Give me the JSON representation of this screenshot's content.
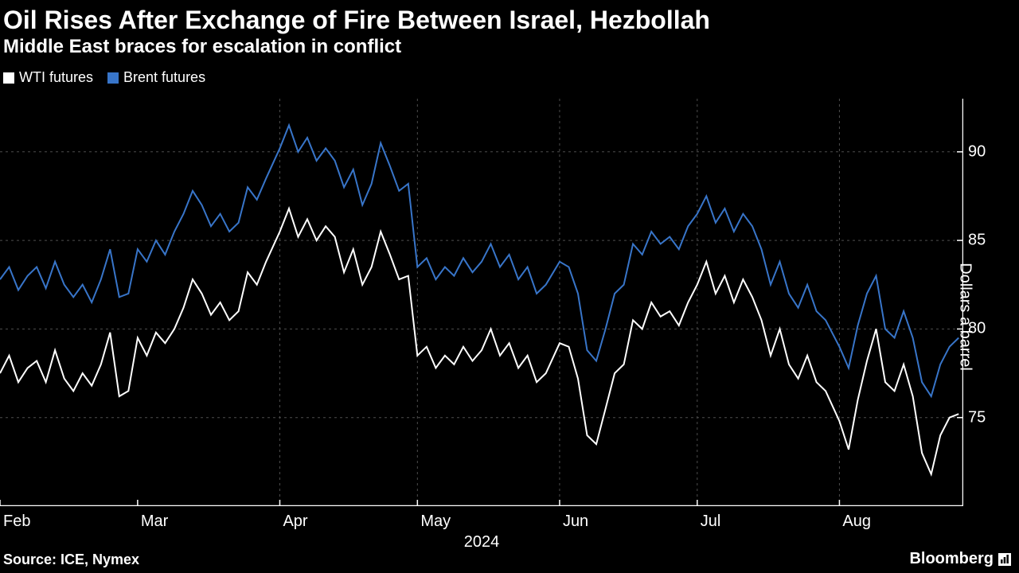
{
  "title": "Oil Rises After Exchange of Fire Between Israel, Hezbollah",
  "subtitle": "Middle East braces for escalation in conflict",
  "legend": {
    "series1": {
      "label": "WTI futures",
      "color": "#ffffff"
    },
    "series2": {
      "label": "Brent futures",
      "color": "#3875c9"
    }
  },
  "chart": {
    "type": "line",
    "background_color": "#000000",
    "grid_color": "#4d4d4d",
    "axis_color": "#ffffff",
    "line_width": 2,
    "title_fontsize": 32,
    "subtitle_fontsize": 24,
    "tick_fontsize": 20,
    "ylabel": "Dollars a barrel",
    "ylabel_fontsize": 20,
    "ylim": [
      70,
      93
    ],
    "yticks": [
      75,
      80,
      85,
      90
    ],
    "xlim": [
      0,
      210
    ],
    "x_year": "2024",
    "xticks": [
      {
        "pos": 0,
        "label": "Feb"
      },
      {
        "pos": 30,
        "label": "Mar"
      },
      {
        "pos": 61,
        "label": "Apr"
      },
      {
        "pos": 91,
        "label": "May"
      },
      {
        "pos": 122,
        "label": "Jun"
      },
      {
        "pos": 152,
        "label": "Jul"
      },
      {
        "pos": 183,
        "label": "Aug"
      }
    ],
    "grid_x": [
      61,
      91,
      122,
      152,
      183
    ],
    "series": {
      "wti": {
        "color": "#ffffff",
        "data": [
          [
            0,
            77.5
          ],
          [
            2,
            78.5
          ],
          [
            4,
            77.0
          ],
          [
            6,
            77.8
          ],
          [
            8,
            78.2
          ],
          [
            10,
            77.0
          ],
          [
            12,
            78.8
          ],
          [
            14,
            77.2
          ],
          [
            16,
            76.5
          ],
          [
            18,
            77.5
          ],
          [
            20,
            76.8
          ],
          [
            22,
            78.0
          ],
          [
            24,
            79.8
          ],
          [
            26,
            76.2
          ],
          [
            28,
            76.5
          ],
          [
            30,
            79.5
          ],
          [
            32,
            78.5
          ],
          [
            34,
            79.8
          ],
          [
            36,
            79.2
          ],
          [
            38,
            80.0
          ],
          [
            40,
            81.2
          ],
          [
            42,
            82.8
          ],
          [
            44,
            82.0
          ],
          [
            46,
            80.8
          ],
          [
            48,
            81.5
          ],
          [
            50,
            80.5
          ],
          [
            52,
            81.0
          ],
          [
            54,
            83.2
          ],
          [
            56,
            82.5
          ],
          [
            58,
            83.8
          ],
          [
            61,
            85.5
          ],
          [
            63,
            86.8
          ],
          [
            65,
            85.2
          ],
          [
            67,
            86.2
          ],
          [
            69,
            85.0
          ],
          [
            71,
            85.8
          ],
          [
            73,
            85.2
          ],
          [
            75,
            83.2
          ],
          [
            77,
            84.5
          ],
          [
            79,
            82.5
          ],
          [
            81,
            83.5
          ],
          [
            83,
            85.5
          ],
          [
            85,
            84.2
          ],
          [
            87,
            82.8
          ],
          [
            89,
            83.0
          ],
          [
            91,
            78.5
          ],
          [
            93,
            79.0
          ],
          [
            95,
            77.8
          ],
          [
            97,
            78.5
          ],
          [
            99,
            78.0
          ],
          [
            101,
            79.0
          ],
          [
            103,
            78.2
          ],
          [
            105,
            78.8
          ],
          [
            107,
            80.0
          ],
          [
            109,
            78.5
          ],
          [
            111,
            79.2
          ],
          [
            113,
            77.8
          ],
          [
            115,
            78.5
          ],
          [
            117,
            77.0
          ],
          [
            119,
            77.5
          ],
          [
            122,
            79.2
          ],
          [
            124,
            79.0
          ],
          [
            126,
            77.2
          ],
          [
            128,
            74.0
          ],
          [
            130,
            73.5
          ],
          [
            132,
            75.5
          ],
          [
            134,
            77.5
          ],
          [
            136,
            78.0
          ],
          [
            138,
            80.5
          ],
          [
            140,
            80.0
          ],
          [
            142,
            81.5
          ],
          [
            144,
            80.7
          ],
          [
            146,
            81.0
          ],
          [
            148,
            80.2
          ],
          [
            150,
            81.5
          ],
          [
            152,
            82.5
          ],
          [
            154,
            83.8
          ],
          [
            156,
            82.0
          ],
          [
            158,
            83.0
          ],
          [
            160,
            81.5
          ],
          [
            162,
            82.8
          ],
          [
            164,
            81.8
          ],
          [
            166,
            80.5
          ],
          [
            168,
            78.5
          ],
          [
            170,
            80.0
          ],
          [
            172,
            78.0
          ],
          [
            174,
            77.2
          ],
          [
            176,
            78.5
          ],
          [
            178,
            77.0
          ],
          [
            180,
            76.5
          ],
          [
            183,
            74.8
          ],
          [
            185,
            73.2
          ],
          [
            187,
            76.0
          ],
          [
            189,
            78.2
          ],
          [
            191,
            80.0
          ],
          [
            193,
            77.0
          ],
          [
            195,
            76.5
          ],
          [
            197,
            78.0
          ],
          [
            199,
            76.2
          ],
          [
            201,
            73.0
          ],
          [
            203,
            71.8
          ],
          [
            205,
            74.0
          ],
          [
            207,
            75.0
          ],
          [
            209,
            75.2
          ]
        ]
      },
      "brent": {
        "color": "#3875c9",
        "data": [
          [
            0,
            82.8
          ],
          [
            2,
            83.5
          ],
          [
            4,
            82.2
          ],
          [
            6,
            83.0
          ],
          [
            8,
            83.5
          ],
          [
            10,
            82.3
          ],
          [
            12,
            83.8
          ],
          [
            14,
            82.5
          ],
          [
            16,
            81.8
          ],
          [
            18,
            82.5
          ],
          [
            20,
            81.5
          ],
          [
            22,
            82.8
          ],
          [
            24,
            84.5
          ],
          [
            26,
            81.8
          ],
          [
            28,
            82.0
          ],
          [
            30,
            84.5
          ],
          [
            32,
            83.8
          ],
          [
            34,
            85.0
          ],
          [
            36,
            84.2
          ],
          [
            38,
            85.5
          ],
          [
            40,
            86.5
          ],
          [
            42,
            87.8
          ],
          [
            44,
            87.0
          ],
          [
            46,
            85.8
          ],
          [
            48,
            86.5
          ],
          [
            50,
            85.5
          ],
          [
            52,
            86.0
          ],
          [
            54,
            88.0
          ],
          [
            56,
            87.3
          ],
          [
            58,
            88.5
          ],
          [
            61,
            90.2
          ],
          [
            63,
            91.5
          ],
          [
            65,
            90.0
          ],
          [
            67,
            90.8
          ],
          [
            69,
            89.5
          ],
          [
            71,
            90.2
          ],
          [
            73,
            89.5
          ],
          [
            75,
            88.0
          ],
          [
            77,
            89.0
          ],
          [
            79,
            87.0
          ],
          [
            81,
            88.2
          ],
          [
            83,
            90.5
          ],
          [
            85,
            89.2
          ],
          [
            87,
            87.8
          ],
          [
            89,
            88.2
          ],
          [
            91,
            83.5
          ],
          [
            93,
            84.0
          ],
          [
            95,
            82.8
          ],
          [
            97,
            83.5
          ],
          [
            99,
            83.0
          ],
          [
            101,
            84.0
          ],
          [
            103,
            83.2
          ],
          [
            105,
            83.8
          ],
          [
            107,
            84.8
          ],
          [
            109,
            83.5
          ],
          [
            111,
            84.2
          ],
          [
            113,
            82.8
          ],
          [
            115,
            83.5
          ],
          [
            117,
            82.0
          ],
          [
            119,
            82.5
          ],
          [
            122,
            83.8
          ],
          [
            124,
            83.5
          ],
          [
            126,
            82.0
          ],
          [
            128,
            78.8
          ],
          [
            130,
            78.2
          ],
          [
            132,
            80.0
          ],
          [
            134,
            82.0
          ],
          [
            136,
            82.5
          ],
          [
            138,
            84.8
          ],
          [
            140,
            84.2
          ],
          [
            142,
            85.5
          ],
          [
            144,
            84.8
          ],
          [
            146,
            85.2
          ],
          [
            148,
            84.5
          ],
          [
            150,
            85.8
          ],
          [
            152,
            86.5
          ],
          [
            154,
            87.5
          ],
          [
            156,
            86.0
          ],
          [
            158,
            86.8
          ],
          [
            160,
            85.5
          ],
          [
            162,
            86.5
          ],
          [
            164,
            85.8
          ],
          [
            166,
            84.5
          ],
          [
            168,
            82.5
          ],
          [
            170,
            83.8
          ],
          [
            172,
            82.0
          ],
          [
            174,
            81.2
          ],
          [
            176,
            82.5
          ],
          [
            178,
            81.0
          ],
          [
            180,
            80.5
          ],
          [
            183,
            79.0
          ],
          [
            185,
            77.8
          ],
          [
            187,
            80.2
          ],
          [
            189,
            82.0
          ],
          [
            191,
            83.0
          ],
          [
            193,
            80.0
          ],
          [
            195,
            79.5
          ],
          [
            197,
            81.0
          ],
          [
            199,
            79.5
          ],
          [
            201,
            77.0
          ],
          [
            203,
            76.2
          ],
          [
            205,
            78.0
          ],
          [
            207,
            79.0
          ],
          [
            209,
            79.5
          ]
        ]
      }
    }
  },
  "source": "Source: ICE, Nymex",
  "brand": "Bloomberg"
}
